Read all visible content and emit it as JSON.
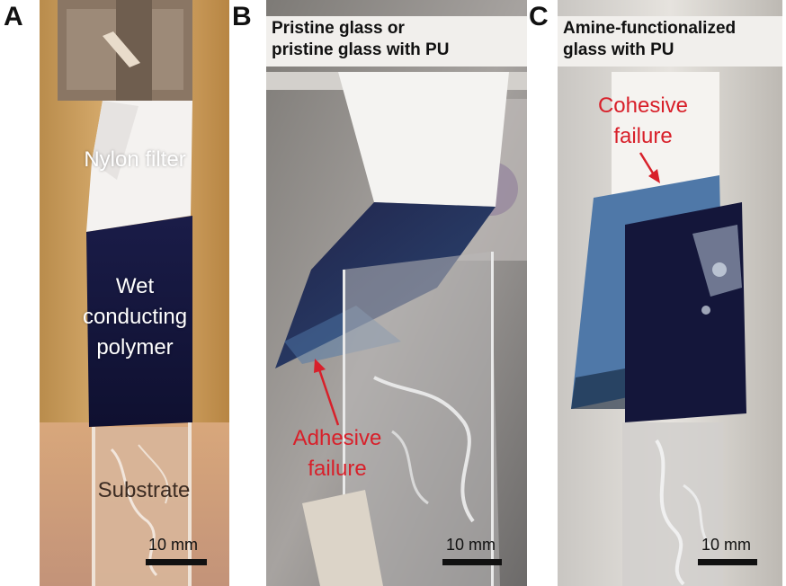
{
  "panels": {
    "a": {
      "letter": "A",
      "labels": {
        "nylon_filter": "Nylon filter",
        "wet_line1": "Wet",
        "wet_line2": "conducting",
        "wet_line3": "polymer",
        "substrate": "Substrate"
      },
      "scale": "10 mm"
    },
    "b": {
      "letter": "B",
      "caption_line1": "Pristine glass or",
      "caption_line2": "pristine glass with PU",
      "annotation_line1": "Adhesive",
      "annotation_line2": "failure",
      "scale": "10 mm"
    },
    "c": {
      "letter": "C",
      "caption_line1": "Amine-functionalized",
      "caption_line2": "glass with PU",
      "annotation_line1": "Cohesive",
      "annotation_line2": "failure",
      "scale": "10 mm"
    }
  },
  "colors": {
    "annotation_red": "#d8202a",
    "film_dark": "#14163a",
    "film_blue": "#4f78a8"
  }
}
